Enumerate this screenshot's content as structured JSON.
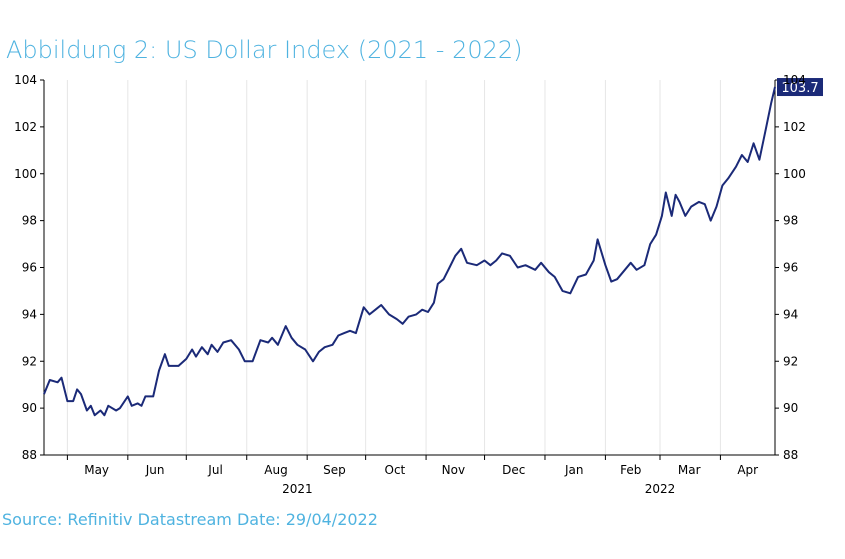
{
  "header": {
    "title": "Abbildung 2: US Dollar Index (2021 - 2022)"
  },
  "footer": {
    "source": "Source: Refinitiv Datastream Date: 29/04/2022"
  },
  "colors": {
    "title": "#4fb3e0",
    "line": "#1b2a78",
    "grid": "#e6e6e6",
    "badge": "#1b2a78"
  },
  "chart_data": {
    "type": "line",
    "title": "Abbildung 2: US Dollar Index (2021 - 2022)",
    "xlabel": "",
    "ylabel": "",
    "ylim": [
      88,
      104
    ],
    "y_ticks": [
      88,
      90,
      92,
      94,
      96,
      98,
      100,
      102,
      104
    ],
    "grid": "vertical at month boundaries",
    "x_range": [
      "2021-04-19",
      "2022-04-29"
    ],
    "month_labels": [
      {
        "label": "May",
        "date": "2021-05-16"
      },
      {
        "label": "Jun",
        "date": "2021-06-15"
      },
      {
        "label": "Jul",
        "date": "2021-07-16"
      },
      {
        "label": "Aug",
        "date": "2021-08-16"
      },
      {
        "label": "Sep",
        "date": "2021-09-15"
      },
      {
        "label": "Oct",
        "date": "2021-10-16"
      },
      {
        "label": "Nov",
        "date": "2021-11-15"
      },
      {
        "label": "Dec",
        "date": "2021-12-16"
      },
      {
        "label": "Jan",
        "date": "2022-01-16"
      },
      {
        "label": "Feb",
        "date": "2022-02-14"
      },
      {
        "label": "Mar",
        "date": "2022-03-16"
      },
      {
        "label": "Apr",
        "date": "2022-04-15"
      }
    ],
    "month_boundaries": [
      "2021-05-01",
      "2021-06-01",
      "2021-07-01",
      "2021-08-01",
      "2021-09-01",
      "2021-10-01",
      "2021-11-01",
      "2021-12-01",
      "2022-01-01",
      "2022-02-01",
      "2022-03-01",
      "2022-04-01"
    ],
    "year_labels": [
      {
        "label": "2021",
        "date": "2021-08-27"
      },
      {
        "label": "2022",
        "date": "2022-03-01"
      }
    ],
    "last_value_label": "103.7",
    "series": [
      {
        "points": [
          [
            "2021-04-19",
            90.6
          ],
          [
            "2021-04-22",
            91.2
          ],
          [
            "2021-04-26",
            91.1
          ],
          [
            "2021-04-28",
            91.3
          ],
          [
            "2021-05-01",
            90.3
          ],
          [
            "2021-05-04",
            90.3
          ],
          [
            "2021-05-06",
            90.8
          ],
          [
            "2021-05-08",
            90.6
          ],
          [
            "2021-05-11",
            89.9
          ],
          [
            "2021-05-13",
            90.1
          ],
          [
            "2021-05-15",
            89.7
          ],
          [
            "2021-05-18",
            89.9
          ],
          [
            "2021-05-20",
            89.7
          ],
          [
            "2021-05-22",
            90.1
          ],
          [
            "2021-05-26",
            89.9
          ],
          [
            "2021-05-28",
            90.0
          ],
          [
            "2021-06-01",
            90.5
          ],
          [
            "2021-06-03",
            90.1
          ],
          [
            "2021-06-06",
            90.2
          ],
          [
            "2021-06-08",
            90.1
          ],
          [
            "2021-06-10",
            90.5
          ],
          [
            "2021-06-14",
            90.5
          ],
          [
            "2021-06-17",
            91.6
          ],
          [
            "2021-06-20",
            92.3
          ],
          [
            "2021-06-22",
            91.8
          ],
          [
            "2021-06-27",
            91.8
          ],
          [
            "2021-07-01",
            92.1
          ],
          [
            "2021-07-04",
            92.5
          ],
          [
            "2021-07-06",
            92.2
          ],
          [
            "2021-07-09",
            92.6
          ],
          [
            "2021-07-12",
            92.3
          ],
          [
            "2021-07-14",
            92.7
          ],
          [
            "2021-07-17",
            92.4
          ],
          [
            "2021-07-20",
            92.8
          ],
          [
            "2021-07-24",
            92.9
          ],
          [
            "2021-07-28",
            92.5
          ],
          [
            "2021-07-31",
            92.0
          ],
          [
            "2021-08-04",
            92.0
          ],
          [
            "2021-08-08",
            92.9
          ],
          [
            "2021-08-12",
            92.8
          ],
          [
            "2021-08-14",
            93.0
          ],
          [
            "2021-08-17",
            92.7
          ],
          [
            "2021-08-21",
            93.5
          ],
          [
            "2021-08-24",
            93.0
          ],
          [
            "2021-08-27",
            92.7
          ],
          [
            "2021-08-31",
            92.5
          ],
          [
            "2021-09-04",
            92.0
          ],
          [
            "2021-09-07",
            92.4
          ],
          [
            "2021-09-10",
            92.6
          ],
          [
            "2021-09-14",
            92.7
          ],
          [
            "2021-09-17",
            93.1
          ],
          [
            "2021-09-20",
            93.2
          ],
          [
            "2021-09-23",
            93.3
          ],
          [
            "2021-09-26",
            93.2
          ],
          [
            "2021-09-30",
            94.3
          ],
          [
            "2021-10-03",
            94.0
          ],
          [
            "2021-10-06",
            94.2
          ],
          [
            "2021-10-09",
            94.4
          ],
          [
            "2021-10-13",
            94.0
          ],
          [
            "2021-10-17",
            93.8
          ],
          [
            "2021-10-20",
            93.6
          ],
          [
            "2021-10-23",
            93.9
          ],
          [
            "2021-10-27",
            94.0
          ],
          [
            "2021-10-30",
            94.2
          ],
          [
            "2021-11-02",
            94.1
          ],
          [
            "2021-11-05",
            94.5
          ],
          [
            "2021-11-07",
            95.3
          ],
          [
            "2021-11-10",
            95.5
          ],
          [
            "2021-11-13",
            96.0
          ],
          [
            "2021-11-16",
            96.5
          ],
          [
            "2021-11-19",
            96.8
          ],
          [
            "2021-11-22",
            96.2
          ],
          [
            "2021-11-27",
            96.1
          ],
          [
            "2021-12-01",
            96.3
          ],
          [
            "2021-12-04",
            96.1
          ],
          [
            "2021-12-07",
            96.3
          ],
          [
            "2021-12-10",
            96.6
          ],
          [
            "2021-12-14",
            96.5
          ],
          [
            "2021-12-18",
            96.0
          ],
          [
            "2021-12-22",
            96.1
          ],
          [
            "2021-12-27",
            95.9
          ],
          [
            "2021-12-30",
            96.2
          ],
          [
            "2022-01-03",
            95.8
          ],
          [
            "2022-01-06",
            95.6
          ],
          [
            "2022-01-10",
            95.0
          ],
          [
            "2022-01-14",
            94.9
          ],
          [
            "2022-01-18",
            95.6
          ],
          [
            "2022-01-22",
            95.7
          ],
          [
            "2022-01-26",
            96.3
          ],
          [
            "2022-01-28",
            97.2
          ],
          [
            "2022-02-01",
            96.1
          ],
          [
            "2022-02-04",
            95.4
          ],
          [
            "2022-02-07",
            95.5
          ],
          [
            "2022-02-11",
            95.9
          ],
          [
            "2022-02-14",
            96.2
          ],
          [
            "2022-02-17",
            95.9
          ],
          [
            "2022-02-21",
            96.1
          ],
          [
            "2022-02-24",
            97.0
          ],
          [
            "2022-02-27",
            97.4
          ],
          [
            "2022-03-02",
            98.2
          ],
          [
            "2022-03-04",
            99.2
          ],
          [
            "2022-03-07",
            98.2
          ],
          [
            "2022-03-09",
            99.1
          ],
          [
            "2022-03-11",
            98.8
          ],
          [
            "2022-03-14",
            98.2
          ],
          [
            "2022-03-17",
            98.6
          ],
          [
            "2022-03-21",
            98.8
          ],
          [
            "2022-03-24",
            98.7
          ],
          [
            "2022-03-27",
            98.0
          ],
          [
            "2022-03-30",
            98.6
          ],
          [
            "2022-04-02",
            99.5
          ],
          [
            "2022-04-05",
            99.8
          ],
          [
            "2022-04-09",
            100.3
          ],
          [
            "2022-04-12",
            100.8
          ],
          [
            "2022-04-15",
            100.5
          ],
          [
            "2022-04-18",
            101.3
          ],
          [
            "2022-04-21",
            100.6
          ],
          [
            "2022-04-24",
            101.8
          ],
          [
            "2022-04-27",
            103.0
          ],
          [
            "2022-04-29",
            103.7
          ]
        ]
      }
    ]
  }
}
